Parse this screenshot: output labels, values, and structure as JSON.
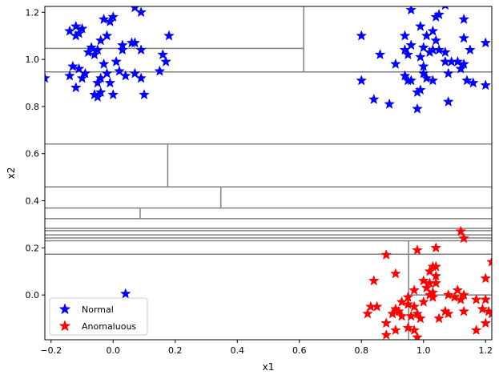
{
  "chart_data": {
    "type": "scatter",
    "xlabel": "x1",
    "ylabel": "x2",
    "xlim": [
      -0.22,
      1.22
    ],
    "ylim": [
      -0.19,
      1.225
    ],
    "x_ticks": [
      -0.2,
      0.0,
      0.2,
      0.4,
      0.6,
      0.8,
      1.0,
      1.2
    ],
    "x_tick_labels": [
      "−0.2",
      "0.0",
      "0.2",
      "0.4",
      "0.6",
      "0.8",
      "1.0",
      "1.2"
    ],
    "y_ticks": [
      0.0,
      0.2,
      0.4,
      0.6,
      0.8,
      1.0,
      1.2
    ],
    "y_tick_labels": [
      "0.0",
      "0.2",
      "0.4",
      "0.6",
      "0.8",
      "1.0",
      "1.2"
    ],
    "grid": false,
    "legend_position": "lower-left",
    "marker": "star",
    "series": [
      {
        "name": "Normal",
        "color": "#0000ff",
        "points": [
          [
            0.07,
            1.22
          ],
          [
            0.09,
            1.2
          ],
          [
            -0.03,
            1.17
          ],
          [
            -0.01,
            1.16
          ],
          [
            0.0,
            1.18
          ],
          [
            -0.14,
            1.12
          ],
          [
            -0.12,
            1.14
          ],
          [
            -0.1,
            1.13
          ],
          [
            -0.12,
            1.1
          ],
          [
            -0.11,
            1.11
          ],
          [
            -0.02,
            1.1
          ],
          [
            0.18,
            1.1
          ],
          [
            -0.04,
            1.08
          ],
          [
            0.03,
            1.06
          ],
          [
            0.07,
            1.07
          ],
          [
            0.06,
            1.07
          ],
          [
            -0.07,
            1.05
          ],
          [
            -0.05,
            1.04
          ],
          [
            0.03,
            1.04
          ],
          [
            0.09,
            1.04
          ],
          [
            -0.08,
            1.03
          ],
          [
            -0.06,
            1.02
          ],
          [
            0.16,
            1.02
          ],
          [
            0.01,
            0.99
          ],
          [
            0.17,
            0.99
          ],
          [
            -0.13,
            0.97
          ],
          [
            -0.03,
            0.98
          ],
          [
            -0.11,
            0.96
          ],
          [
            0.15,
            0.95
          ],
          [
            -0.14,
            0.93
          ],
          [
            -0.09,
            0.94
          ],
          [
            0.02,
            0.95
          ],
          [
            0.07,
            0.94
          ],
          [
            -0.02,
            0.94
          ],
          [
            0.04,
            0.93
          ],
          [
            0.09,
            0.92
          ],
          [
            -0.1,
            0.92
          ],
          [
            -0.04,
            0.92
          ],
          [
            -0.22,
            0.92
          ],
          [
            -0.05,
            0.9
          ],
          [
            -0.01,
            0.9
          ],
          [
            -0.12,
            0.88
          ],
          [
            -0.04,
            0.86
          ],
          [
            -0.06,
            0.85
          ],
          [
            0.0,
            0.85
          ],
          [
            0.1,
            0.85
          ],
          [
            -0.05,
            0.84
          ],
          [
            0.04,
            0.005
          ],
          [
            1.07,
            1.23
          ],
          [
            0.96,
            1.21
          ],
          [
            1.05,
            1.19
          ],
          [
            1.04,
            1.18
          ],
          [
            1.13,
            1.17
          ],
          [
            0.99,
            1.14
          ],
          [
            1.03,
            1.12
          ],
          [
            1.01,
            1.1
          ],
          [
            0.94,
            1.1
          ],
          [
            0.8,
            1.1
          ],
          [
            1.13,
            1.09
          ],
          [
            1.2,
            1.07
          ],
          [
            1.04,
            1.08
          ],
          [
            0.96,
            1.06
          ],
          [
            1.0,
            1.05
          ],
          [
            0.94,
            1.04
          ],
          [
            1.03,
            1.04
          ],
          [
            1.05,
            1.04
          ],
          [
            1.07,
            1.03
          ],
          [
            1.02,
            1.03
          ],
          [
            1.15,
            1.04
          ],
          [
            0.86,
            1.02
          ],
          [
            0.95,
            1.02
          ],
          [
            0.99,
            1.01
          ],
          [
            1.07,
            0.99
          ],
          [
            1.09,
            0.99
          ],
          [
            1.11,
            0.99
          ],
          [
            0.91,
            0.98
          ],
          [
            1.0,
            0.97
          ],
          [
            1.13,
            0.98
          ],
          [
            1.12,
            0.96
          ],
          [
            1.0,
            0.94
          ],
          [
            1.08,
            0.94
          ],
          [
            0.94,
            0.93
          ],
          [
            1.01,
            0.92
          ],
          [
            0.8,
            0.91
          ],
          [
            0.95,
            0.91
          ],
          [
            0.96,
            0.91
          ],
          [
            1.03,
            0.91
          ],
          [
            1.14,
            0.91
          ],
          [
            1.16,
            0.9
          ],
          [
            1.2,
            0.89
          ],
          [
            0.98,
            0.86
          ],
          [
            0.99,
            0.87
          ],
          [
            0.84,
            0.83
          ],
          [
            0.89,
            0.81
          ],
          [
            1.08,
            0.82
          ],
          [
            0.98,
            0.79
          ]
        ]
      },
      {
        "name": "Anomaluous",
        "color": "#ff0000",
        "points": [
          [
            1.12,
            0.27
          ],
          [
            1.13,
            0.24
          ],
          [
            1.04,
            0.2
          ],
          [
            0.98,
            0.19
          ],
          [
            0.88,
            0.17
          ],
          [
            1.22,
            0.14
          ],
          [
            1.03,
            0.12
          ],
          [
            1.04,
            0.12
          ],
          [
            1.02,
            0.1
          ],
          [
            1.04,
            0.08
          ],
          [
            0.91,
            0.09
          ],
          [
            1.2,
            0.07
          ],
          [
            0.84,
            0.06
          ],
          [
            1.0,
            0.06
          ],
          [
            1.02,
            0.05
          ],
          [
            1.04,
            0.05
          ],
          [
            1.01,
            0.03
          ],
          [
            1.11,
            0.02
          ],
          [
            0.97,
            0.02
          ],
          [
            1.03,
            0.01
          ],
          [
            1.02,
            0.0
          ],
          [
            1.08,
            0.0
          ],
          [
            1.13,
            0.0
          ],
          [
            0.95,
            -0.01
          ],
          [
            1.03,
            -0.01
          ],
          [
            1.1,
            -0.01
          ],
          [
            1.12,
            -0.02
          ],
          [
            1.17,
            -0.02
          ],
          [
            1.2,
            -0.02
          ],
          [
            0.93,
            -0.03
          ],
          [
            1.0,
            -0.03
          ],
          [
            0.95,
            -0.04
          ],
          [
            0.83,
            -0.05
          ],
          [
            0.85,
            -0.05
          ],
          [
            0.97,
            -0.05
          ],
          [
            1.19,
            -0.06
          ],
          [
            0.91,
            -0.06
          ],
          [
            0.92,
            -0.07
          ],
          [
            1.07,
            -0.07
          ],
          [
            1.13,
            -0.07
          ],
          [
            1.21,
            -0.07
          ],
          [
            0.82,
            -0.08
          ],
          [
            0.9,
            -0.08
          ],
          [
            0.93,
            -0.09
          ],
          [
            0.96,
            -0.09
          ],
          [
            0.98,
            -0.08
          ],
          [
            1.08,
            -0.08
          ],
          [
            1.22,
            -0.08
          ],
          [
            0.99,
            -0.1
          ],
          [
            1.05,
            -0.1
          ],
          [
            0.88,
            -0.12
          ],
          [
            1.2,
            -0.12
          ],
          [
            0.95,
            -0.14
          ],
          [
            0.91,
            -0.15
          ],
          [
            0.97,
            -0.15
          ],
          [
            1.17,
            -0.15
          ],
          [
            0.88,
            -0.17
          ],
          [
            0.98,
            -0.18
          ]
        ]
      }
    ],
    "partition_lines": {
      "color": "#808080",
      "horizontal": [
        {
          "y": 1.047,
          "x0": -0.22,
          "x1": 0.614
        },
        {
          "y": 0.947,
          "x0": -0.22,
          "x1": 1.22
        },
        {
          "y": 0.641,
          "x0": -0.22,
          "x1": 1.22
        },
        {
          "y": 0.459,
          "x0": -0.22,
          "x1": 1.22
        },
        {
          "y": 0.369,
          "x0": -0.22,
          "x1": 1.22
        },
        {
          "y": 0.324,
          "x0": -0.22,
          "x1": 1.22
        },
        {
          "y": 0.283,
          "x0": -0.22,
          "x1": 1.22
        },
        {
          "y": 0.273,
          "x0": -0.22,
          "x1": 1.22
        },
        {
          "y": 0.255,
          "x0": -0.22,
          "x1": 1.22
        },
        {
          "y": 0.242,
          "x0": -0.22,
          "x1": 1.22
        },
        {
          "y": 0.23,
          "x0": -0.22,
          "x1": 1.22
        },
        {
          "y": 0.173,
          "x0": -0.22,
          "x1": 1.22
        },
        {
          "y": 0.0,
          "x0": 0.952,
          "x1": 1.22
        }
      ],
      "vertical": [
        {
          "x": 0.614,
          "y0": 0.947,
          "y1": 1.225
        },
        {
          "x": 0.176,
          "y0": 0.459,
          "y1": 0.641
        },
        {
          "x": 0.347,
          "y0": 0.369,
          "y1": 0.459
        },
        {
          "x": 0.087,
          "y0": 0.324,
          "y1": 0.369
        },
        {
          "x": 0.952,
          "y0": -0.19,
          "y1": 0.23
        }
      ]
    }
  }
}
